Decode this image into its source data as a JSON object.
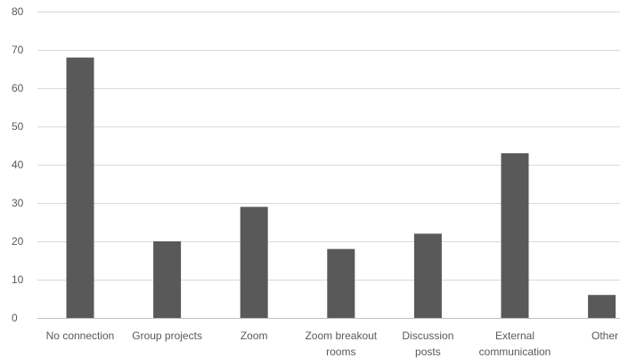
{
  "chart_data": {
    "type": "bar",
    "title": "",
    "xlabel": "",
    "ylabel": "",
    "categories": [
      "No connection",
      "Group projects",
      "Zoom",
      "Zoom breakout rooms",
      "Discussion posts",
      "External communication",
      "Other"
    ],
    "category_lines": [
      [
        "No connection"
      ],
      [
        "Group projects"
      ],
      [
        "Zoom"
      ],
      [
        "Zoom breakout",
        "rooms"
      ],
      [
        "Discussion",
        "posts"
      ],
      [
        "External",
        "communication"
      ],
      [
        "Other"
      ]
    ],
    "values": [
      68,
      20,
      29,
      18,
      22,
      43,
      6
    ],
    "ylim": [
      0,
      80
    ],
    "yticks": [
      0,
      10,
      20,
      30,
      40,
      50,
      60,
      70,
      80
    ],
    "grid": true,
    "legend": "none",
    "bar_color": "#595959"
  }
}
